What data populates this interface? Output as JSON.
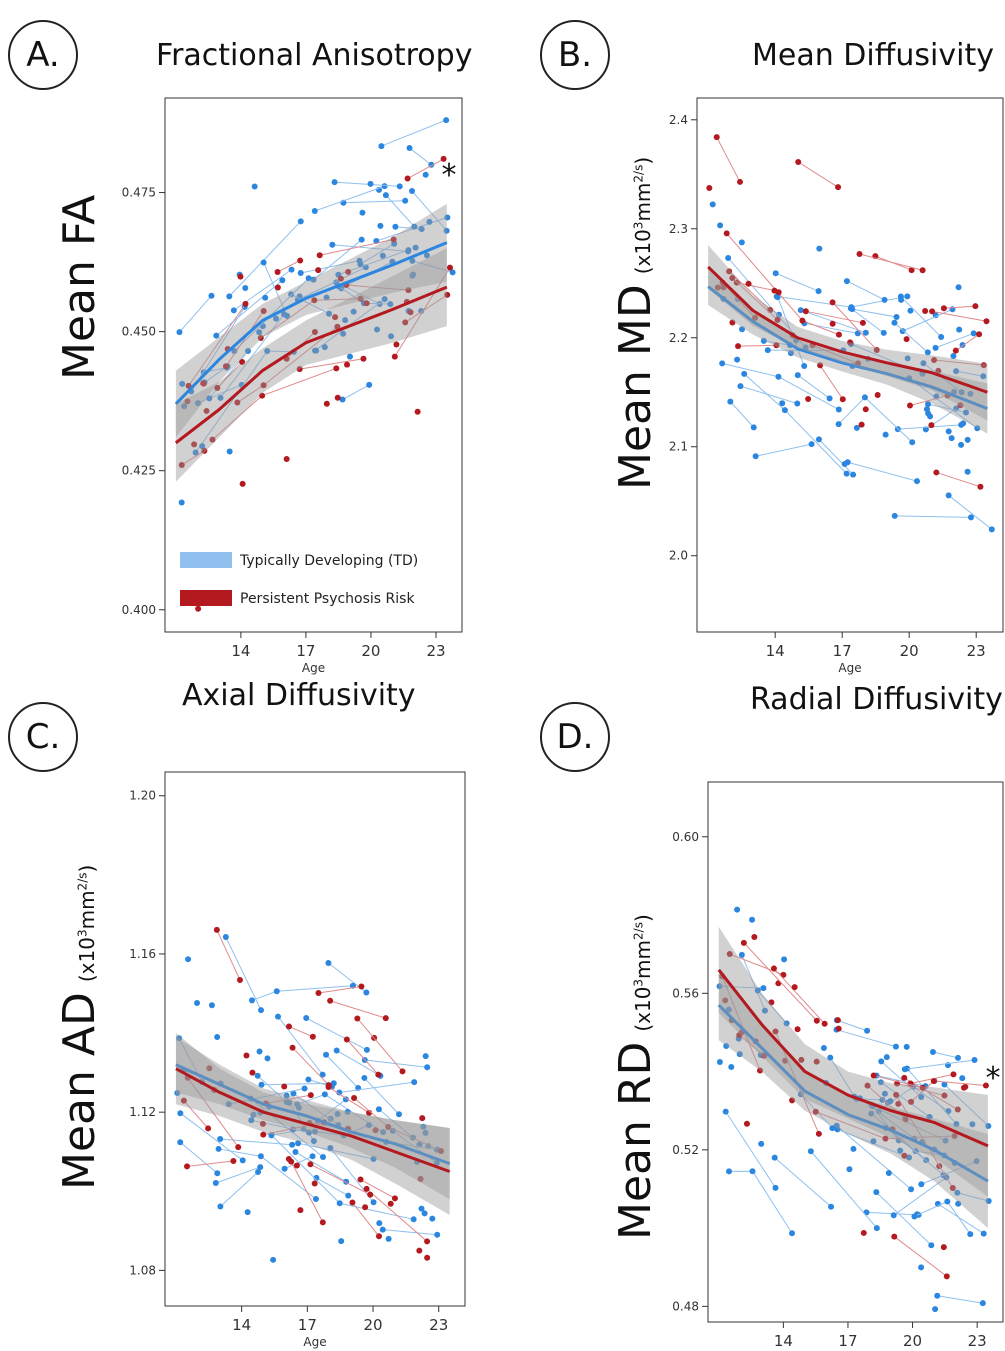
{
  "colors": {
    "td": "#2b86e0",
    "psych": "#b3191f",
    "td_light": "#8fc0ee",
    "psych_light": "#e08a8c",
    "ribbon": "#9a9a9a"
  },
  "legend": {
    "td": "Typically Developing (TD)",
    "psych": "Persistent Psychosis Risk"
  },
  "panels": [
    {
      "letter": "A.",
      "title": "Fractional Anisotropy",
      "ylabel": "Mean FA",
      "ylabel_unit": "",
      "xlabel": "Age",
      "significant": true,
      "star": "*"
    },
    {
      "letter": "B.",
      "title": "Mean Diffusivity",
      "ylabel": "Mean MD",
      "ylabel_unit": "(x10",
      "unit_sup": "3",
      "unit_mid": "mm",
      "unit_sup2": "2/s",
      "unit_end": ")",
      "xlabel": "Age",
      "significant": false
    },
    {
      "letter": "C.",
      "title": "Axial Diffusivity",
      "ylabel": "Mean AD",
      "ylabel_unit": "(x10",
      "unit_sup": "3",
      "unit_mid": "mm",
      "unit_sup2": "2/s",
      "unit_end": ")",
      "xlabel": "Age",
      "significant": false
    },
    {
      "letter": "D.",
      "title": "Radial Diffusivity",
      "ylabel": "Mean RD",
      "ylabel_unit": "(x10",
      "unit_sup": "3",
      "unit_mid": "mm",
      "unit_sup2": "2/s",
      "unit_end": ")",
      "xlabel": "Age",
      "significant": true,
      "star": "*"
    }
  ],
  "chart_data": [
    {
      "type": "scatter",
      "title": "Fractional Anisotropy",
      "xlabel": "Age",
      "ylabel": "Mean FA",
      "xlim": [
        10.5,
        24.2
      ],
      "ylim": [
        0.396,
        0.492
      ],
      "xticks": [
        14,
        17,
        20,
        23
      ],
      "yticks": [
        0.4,
        0.425,
        0.45,
        0.475
      ],
      "ytick_labels": [
        "0.400",
        "0.425",
        "0.450",
        "0.475"
      ],
      "legend": "bottom-left",
      "series": [
        {
          "name": "Typically Developing (TD)",
          "group": "td",
          "fit": {
            "x": [
              11,
              13,
              15,
              17,
              19,
              21,
              23.5
            ],
            "y": [
              0.437,
              0.445,
              0.452,
              0.456,
              0.459,
              0.462,
              0.466
            ]
          },
          "ribbon": {
            "lower": [
              0.431,
              0.441,
              0.449,
              0.453,
              0.455,
              0.457,
              0.459
            ],
            "upper": [
              0.443,
              0.449,
              0.455,
              0.459,
              0.463,
              0.467,
              0.473
            ]
          }
        },
        {
          "name": "Persistent Psychosis Risk",
          "group": "psych",
          "fit": {
            "x": [
              11,
              13,
              15,
              17,
              19,
              21,
              23.5
            ],
            "y": [
              0.43,
              0.436,
              0.443,
              0.448,
              0.451,
              0.454,
              0.458
            ]
          },
          "ribbon": {
            "lower": [
              0.423,
              0.431,
              0.439,
              0.444,
              0.446,
              0.448,
              0.451
            ],
            "upper": [
              0.437,
              0.441,
              0.447,
              0.452,
              0.456,
              0.46,
              0.465
            ]
          }
        }
      ]
    },
    {
      "type": "scatter",
      "title": "Mean Diffusivity",
      "xlabel": "Age",
      "ylabel": "Mean MD",
      "xlim": [
        10.5,
        24.2
      ],
      "ylim": [
        1.93,
        2.42
      ],
      "xticks": [
        14,
        17,
        20,
        23
      ],
      "yticks": [
        2.0,
        2.1,
        2.2,
        2.3,
        2.4
      ],
      "ytick_labels": [
        "2.0",
        "2.1",
        "2.2",
        "2.3",
        "2.4"
      ],
      "series": [
        {
          "name": "Typically Developing (TD)",
          "group": "td",
          "fit": {
            "x": [
              11,
              13,
              15,
              17,
              19,
              21,
              23.5
            ],
            "y": [
              2.247,
              2.215,
              2.19,
              2.177,
              2.167,
              2.155,
              2.135
            ]
          },
          "ribbon": {
            "lower": [
              2.23,
              2.203,
              2.182,
              2.169,
              2.157,
              2.14,
              2.112
            ],
            "upper": [
              2.264,
              2.227,
              2.198,
              2.185,
              2.177,
              2.17,
              2.158
            ]
          }
        },
        {
          "name": "Persistent Psychosis Risk",
          "group": "psych",
          "fit": {
            "x": [
              11,
              13,
              15,
              17,
              19,
              21,
              23.5
            ],
            "y": [
              2.265,
              2.225,
              2.2,
              2.187,
              2.177,
              2.168,
              2.15
            ]
          },
          "ribbon": {
            "lower": [
              2.245,
              2.211,
              2.19,
              2.177,
              2.165,
              2.152,
              2.124
            ],
            "upper": [
              2.285,
              2.239,
              2.21,
              2.197,
              2.189,
              2.184,
              2.176
            ]
          }
        }
      ]
    },
    {
      "type": "scatter",
      "title": "Axial Diffusivity",
      "xlabel": "Age",
      "ylabel": "Mean AD",
      "xlim": [
        10.5,
        24.2
      ],
      "ylim": [
        1.071,
        1.206
      ],
      "xticks": [
        14,
        17,
        20,
        23
      ],
      "yticks": [
        1.08,
        1.12,
        1.16,
        1.2
      ],
      "ytick_labels": [
        "1.08",
        "1.12",
        "1.16",
        "1.20"
      ],
      "series": [
        {
          "name": "Typically Developing (TD)",
          "group": "td",
          "fit": {
            "x": [
              11,
              13,
              15,
              17,
              19,
              21,
              23.5
            ],
            "y": [
              1.132,
              1.127,
              1.122,
              1.119,
              1.115,
              1.112,
              1.107
            ]
          },
          "ribbon": {
            "lower": [
              1.125,
              1.122,
              1.118,
              1.115,
              1.111,
              1.106,
              1.098
            ],
            "upper": [
              1.139,
              1.132,
              1.126,
              1.123,
              1.12,
              1.118,
              1.116
            ]
          }
        },
        {
          "name": "Persistent Psychosis Risk",
          "group": "psych",
          "fit": {
            "x": [
              11,
              13,
              15,
              17,
              19,
              21,
              23.5
            ],
            "y": [
              1.131,
              1.125,
              1.12,
              1.117,
              1.114,
              1.11,
              1.105
            ]
          },
          "ribbon": {
            "lower": [
              1.122,
              1.119,
              1.115,
              1.112,
              1.108,
              1.102,
              1.094
            ],
            "upper": [
              1.14,
              1.131,
              1.125,
              1.122,
              1.12,
              1.118,
              1.116
            ]
          }
        }
      ]
    },
    {
      "type": "scatter",
      "title": "Radial Diffusivity",
      "xlabel": "Age",
      "ylabel": "Mean RD",
      "xlim": [
        10.5,
        24.2
      ],
      "ylim": [
        0.476,
        0.614
      ],
      "xticks": [
        14,
        17,
        20,
        23
      ],
      "yticks": [
        0.48,
        0.52,
        0.56,
        0.6
      ],
      "ytick_labels": [
        "0.48",
        "0.52",
        "0.56",
        "0.60"
      ],
      "series": [
        {
          "name": "Typically Developing (TD)",
          "group": "td",
          "fit": {
            "x": [
              11,
              13,
              15,
              17,
              19,
              21,
              23.5
            ],
            "y": [
              0.557,
              0.546,
              0.535,
              0.529,
              0.525,
              0.52,
              0.512
            ]
          },
          "ribbon": {
            "lower": [
              0.548,
              0.54,
              0.53,
              0.524,
              0.519,
              0.512,
              0.5
            ],
            "upper": [
              0.566,
              0.552,
              0.54,
              0.534,
              0.531,
              0.528,
              0.524
            ]
          }
        },
        {
          "name": "Persistent Psychosis Risk",
          "group": "psych",
          "fit": {
            "x": [
              11,
              13,
              15,
              17,
              19,
              21,
              23.5
            ],
            "y": [
              0.566,
              0.552,
              0.54,
              0.534,
              0.53,
              0.527,
              0.521
            ]
          },
          "ribbon": {
            "lower": [
              0.555,
              0.544,
              0.533,
              0.528,
              0.523,
              0.518,
              0.508
            ],
            "upper": [
              0.577,
              0.56,
              0.547,
              0.54,
              0.537,
              0.536,
              0.534
            ]
          }
        }
      ]
    }
  ]
}
